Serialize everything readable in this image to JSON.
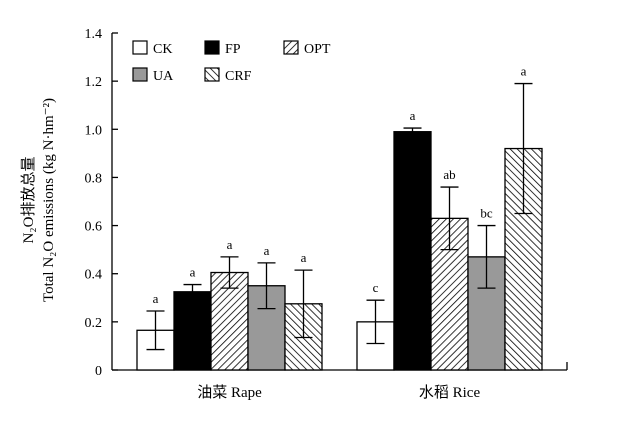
{
  "chart_data": {
    "type": "bar",
    "ylabel_line1": "N₂O排放总量",
    "ylabel_line2": "Total N₂O emissions (kg N·hm⁻²)",
    "ylim": [
      0,
      1.4
    ],
    "yticks": [
      "0",
      "0.2",
      "0.4",
      "0.6",
      "0.8",
      "1.0",
      "1.2",
      "1.4"
    ],
    "categories": [
      "油菜 Rape",
      "水稻 Rice"
    ],
    "legend_placement": "top-left",
    "series": [
      {
        "name": "CK",
        "fill": "white",
        "values": [
          0.165,
          0.2
        ],
        "errors": [
          0.08,
          0.09
        ],
        "labels": [
          "a",
          "c"
        ]
      },
      {
        "name": "FP",
        "fill": "black",
        "values": [
          0.325,
          0.99
        ],
        "errors": [
          0.03,
          0.015
        ],
        "labels": [
          "a",
          "a"
        ]
      },
      {
        "name": "OPT",
        "fill": "hatch-right",
        "values": [
          0.405,
          0.63
        ],
        "errors": [
          0.065,
          0.13
        ],
        "labels": [
          "a",
          "ab"
        ]
      },
      {
        "name": "UA",
        "fill": "gray",
        "values": [
          0.35,
          0.47
        ],
        "errors": [
          0.095,
          0.13
        ],
        "labels": [
          "a",
          "bc"
        ]
      },
      {
        "name": "CRF",
        "fill": "hatch-left",
        "values": [
          0.275,
          0.92
        ],
        "errors": [
          0.14,
          0.27
        ],
        "labels": [
          "a",
          "a"
        ]
      }
    ]
  },
  "colors": {
    "axis": "#000000",
    "black": "#000000",
    "gray": "#999999",
    "white": "#ffffff"
  }
}
